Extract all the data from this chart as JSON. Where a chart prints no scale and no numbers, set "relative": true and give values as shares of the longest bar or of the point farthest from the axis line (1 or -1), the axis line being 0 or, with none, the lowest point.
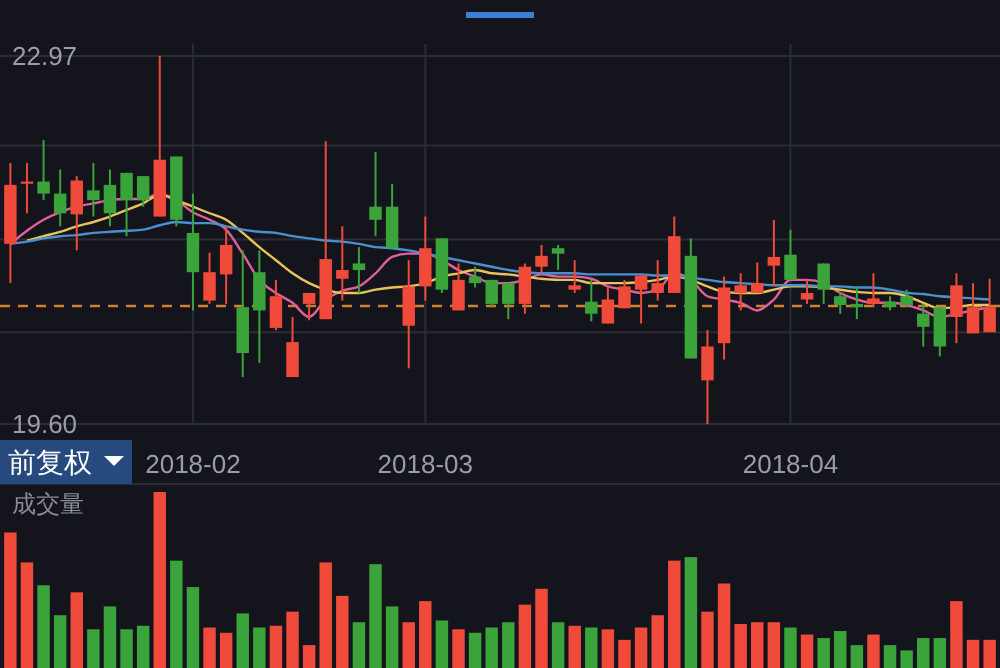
{
  "chart_data": [
    {
      "type": "candlestick",
      "annotations": [
        "前复权"
      ],
      "categories": [
        null,
        null,
        null,
        null,
        null,
        null,
        null,
        null,
        null,
        null,
        null,
        "2018-02",
        null,
        null,
        null,
        null,
        null,
        null,
        null,
        null,
        null,
        null,
        null,
        null,
        null,
        "2018-03",
        null,
        null,
        null,
        null,
        null,
        null,
        null,
        null,
        null,
        null,
        null,
        null,
        null,
        null,
        null,
        null,
        null,
        null,
        null,
        null,
        null,
        "2018-04",
        null,
        null,
        null,
        null,
        null,
        null,
        null,
        null,
        null,
        null,
        null,
        null
      ],
      "ohlc": [
        [
          21.25,
          21.99,
          20.89,
          21.79
        ],
        [
          21.8,
          21.99,
          21.53,
          21.82
        ],
        [
          21.82,
          22.2,
          21.65,
          21.71
        ],
        [
          21.71,
          21.93,
          21.41,
          21.53
        ],
        [
          21.52,
          21.87,
          21.19,
          21.83
        ],
        [
          21.74,
          21.99,
          21.5,
          21.65
        ],
        [
          21.79,
          21.93,
          21.41,
          21.53
        ],
        [
          21.9,
          21.9,
          21.32,
          21.65
        ],
        [
          21.87,
          21.87,
          21.59,
          21.65
        ],
        [
          21.5,
          22.97,
          21.5,
          22.02
        ],
        [
          22.05,
          22.05,
          21.41,
          21.47
        ],
        [
          21.35,
          21.71,
          20.64,
          20.99
        ],
        [
          20.73,
          21.17,
          20.7,
          20.99
        ],
        [
          20.97,
          21.41,
          20.7,
          21.24
        ],
        [
          20.67,
          21.19,
          20.03,
          20.25
        ],
        [
          20.99,
          21.19,
          20.16,
          20.64
        ],
        [
          20.48,
          20.92,
          20.46,
          20.77
        ],
        [
          20.03,
          20.58,
          20.03,
          20.35
        ],
        [
          20.7,
          20.8,
          20.55,
          20.8
        ],
        [
          20.56,
          22.19,
          20.56,
          21.11
        ],
        [
          20.93,
          21.41,
          20.73,
          21.01
        ],
        [
          21.07,
          21.22,
          20.8,
          21.01
        ],
        [
          21.59,
          22.09,
          21.32,
          21.47
        ],
        [
          21.59,
          21.8,
          21.21,
          21.21
        ],
        [
          20.5,
          21.1,
          20.11,
          20.86
        ],
        [
          20.86,
          21.5,
          20.73,
          21.21
        ],
        [
          21.3,
          21.3,
          20.8,
          20.83
        ],
        [
          20.64,
          21.07,
          20.64,
          20.92
        ],
        [
          20.95,
          21.04,
          20.85,
          20.89
        ],
        [
          20.92,
          20.92,
          20.67,
          20.7
        ],
        [
          20.89,
          20.89,
          20.56,
          20.7
        ],
        [
          20.7,
          21.07,
          20.61,
          21.04
        ],
        [
          21.04,
          21.24,
          20.98,
          21.14
        ],
        [
          21.21,
          21.24,
          21.01,
          21.16
        ],
        [
          20.83,
          21.1,
          20.8,
          20.87
        ],
        [
          20.72,
          20.92,
          20.54,
          20.61
        ],
        [
          20.52,
          20.86,
          20.52,
          20.74
        ],
        [
          20.66,
          20.92,
          20.66,
          20.86
        ],
        [
          20.83,
          20.96,
          20.52,
          20.96
        ],
        [
          20.8,
          21.1,
          20.73,
          20.89
        ],
        [
          20.8,
          21.5,
          20.8,
          21.32
        ],
        [
          21.14,
          21.3,
          20.2,
          20.2
        ],
        [
          20.0,
          20.46,
          19.6,
          20.31
        ],
        [
          20.34,
          20.95,
          20.19,
          20.85
        ],
        [
          20.8,
          20.98,
          20.64,
          20.87
        ],
        [
          20.8,
          21.08,
          20.8,
          20.89
        ],
        [
          21.05,
          21.47,
          20.86,
          21.13
        ],
        [
          21.15,
          21.38,
          20.92,
          20.92
        ],
        [
          20.74,
          20.92,
          20.7,
          20.8
        ],
        [
          21.07,
          21.07,
          20.7,
          20.83
        ],
        [
          20.77,
          20.81,
          20.61,
          20.69
        ],
        [
          20.7,
          20.86,
          20.56,
          20.67
        ],
        [
          20.7,
          20.98,
          20.67,
          20.75
        ],
        [
          20.72,
          20.77,
          20.64,
          20.67
        ],
        [
          20.77,
          20.83,
          20.67,
          20.69
        ],
        [
          20.61,
          20.7,
          20.31,
          20.49
        ],
        [
          20.67,
          20.67,
          20.22,
          20.31
        ],
        [
          20.58,
          20.98,
          20.34,
          20.87
        ],
        [
          20.43,
          20.89,
          20.43,
          20.67
        ],
        [
          20.44,
          20.93,
          20.44,
          20.67
        ]
      ],
      "colors": [
        "#f04a3a",
        "#f04a3a",
        "#3aa33a",
        "#3aa33a",
        "#f04a3a",
        "#3aa33a",
        "#3aa33a",
        "#3aa33a",
        "#3aa33a",
        "#f04a3a",
        "#3aa33a",
        "#3aa33a",
        "#f04a3a",
        "#f04a3a",
        "#3aa33a",
        "#3aa33a",
        "#f04a3a",
        "#f04a3a",
        "#f04a3a",
        "#f04a3a",
        "#f04a3a",
        "#3aa33a",
        "#3aa33a",
        "#3aa33a",
        "#f04a3a",
        "#f04a3a",
        "#3aa33a",
        "#f04a3a",
        "#3aa33a",
        "#3aa33a",
        "#3aa33a",
        "#f04a3a",
        "#f04a3a",
        "#3aa33a",
        "#f04a3a",
        "#3aa33a",
        "#f04a3a",
        "#f04a3a",
        "#f04a3a",
        "#f04a3a",
        "#f04a3a",
        "#3aa33a",
        "#f04a3a",
        "#f04a3a",
        "#f04a3a",
        "#f04a3a",
        "#f04a3a",
        "#3aa33a",
        "#f04a3a",
        "#3aa33a",
        "#3aa33a",
        "#3aa33a",
        "#f04a3a",
        "#3aa33a",
        "#3aa33a",
        "#3aa33a",
        "#3aa33a",
        "#f04a3a",
        "#f04a3a",
        "#f04a3a"
      ],
      "series": [
        {
          "type": "line",
          "color": "#e0609a",
          "values": [
            21.25,
            21.37,
            21.47,
            21.54,
            21.59,
            21.62,
            21.65,
            21.66,
            21.66,
            21.71,
            21.65,
            21.54,
            21.47,
            21.38,
            21.16,
            20.92,
            20.8,
            20.71,
            20.58,
            20.74,
            20.82,
            20.86,
            20.98,
            21.13,
            21.16,
            21.16,
            21.1,
            21.01,
            20.95,
            20.89,
            20.89,
            20.92,
            20.97,
            20.95,
            20.95,
            20.93,
            20.86,
            20.83,
            20.8,
            20.83,
            20.98,
            20.92,
            20.77,
            20.74,
            20.71,
            20.64,
            20.74,
            20.92,
            20.92,
            20.89,
            20.8,
            20.74,
            20.71,
            20.71,
            20.69,
            20.64,
            20.58,
            20.61,
            20.64,
            20.67
          ]
        },
        {
          "type": "line",
          "color": "#e8c25a",
          "values": [
            null,
            21.28,
            21.32,
            21.36,
            21.41,
            21.45,
            21.5,
            21.56,
            21.62,
            21.7,
            21.65,
            21.59,
            21.53,
            21.47,
            21.35,
            21.22,
            21.1,
            20.98,
            20.89,
            20.83,
            20.8,
            20.8,
            20.83,
            20.85,
            20.86,
            20.89,
            20.95,
            20.98,
            21.01,
            20.98,
            20.97,
            20.95,
            20.93,
            20.92,
            20.92,
            20.89,
            20.89,
            20.89,
            20.9,
            20.92,
            20.95,
            20.92,
            20.86,
            20.81,
            20.8,
            20.8,
            20.83,
            20.86,
            20.86,
            20.85,
            20.83,
            20.81,
            20.8,
            20.8,
            20.77,
            20.71,
            20.66,
            20.67,
            20.69,
            20.69
          ]
        },
        {
          "type": "line",
          "color": "#4a90d0",
          "values": [
            21.25,
            21.27,
            21.3,
            21.32,
            21.33,
            21.35,
            21.36,
            21.37,
            21.38,
            21.42,
            21.45,
            21.44,
            21.44,
            21.41,
            21.38,
            21.36,
            21.35,
            21.32,
            21.3,
            21.28,
            21.27,
            21.25,
            21.22,
            21.21,
            21.19,
            21.16,
            21.13,
            21.1,
            21.07,
            21.04,
            21.01,
            20.99,
            20.98,
            20.98,
            20.98,
            20.97,
            20.97,
            20.97,
            20.97,
            20.96,
            20.96,
            20.94,
            20.92,
            20.9,
            20.89,
            20.88,
            20.87,
            20.87,
            20.87,
            20.86,
            20.86,
            20.85,
            20.85,
            20.83,
            20.8,
            20.79,
            20.77,
            20.76,
            20.75,
            20.74
          ]
        }
      ],
      "ylim": [
        19.6,
        23.08
      ],
      "yticks": [
        22.97,
        {
          "value": 22.15,
          "label": null
        },
        {
          "value": 21.29,
          "label": null
        },
        {
          "value": 20.44,
          "label": null
        },
        {
          "value": 19.6,
          "label": "19.60"
        }
      ],
      "grid": true,
      "ref_lines": [
        {
          "axis": "y",
          "value": 20.68,
          "color": "#d08030",
          "line_style": "dashed"
        }
      ]
    },
    {
      "type": "bar",
      "title": "成交量",
      "relative": true,
      "categories": [
        null,
        null,
        null,
        null,
        null,
        null,
        null,
        null,
        null,
        null,
        null,
        null,
        null,
        null,
        null,
        null,
        null,
        null,
        null,
        null,
        null,
        null,
        null,
        null,
        null,
        null,
        null,
        null,
        null,
        null,
        null,
        null,
        null,
        null,
        null,
        null,
        null,
        null,
        null,
        null,
        null,
        null,
        null,
        null,
        null,
        null,
        null,
        null,
        null,
        null,
        null,
        null,
        null,
        null,
        null,
        null,
        null,
        null,
        null,
        null
      ],
      "values": [
        0.77,
        0.6,
        0.47,
        0.3,
        0.43,
        0.22,
        0.35,
        0.22,
        0.24,
        1.0,
        0.61,
        0.46,
        0.23,
        0.2,
        0.31,
        0.23,
        0.24,
        0.32,
        0.13,
        0.6,
        0.41,
        0.26,
        0.59,
        0.35,
        0.26,
        0.38,
        0.27,
        0.22,
        0.2,
        0.23,
        0.26,
        0.36,
        0.45,
        0.26,
        0.24,
        0.23,
        0.22,
        0.16,
        0.23,
        0.3,
        0.61,
        0.63,
        0.32,
        0.48,
        0.25,
        0.26,
        0.26,
        0.23,
        0.19,
        0.17,
        0.21,
        0.13,
        0.19,
        0.13,
        0.1,
        0.17,
        0.17,
        0.38,
        0.16,
        0.16
      ],
      "colors": [
        "#f04a3a",
        "#f04a3a",
        "#3aa33a",
        "#3aa33a",
        "#f04a3a",
        "#3aa33a",
        "#3aa33a",
        "#3aa33a",
        "#3aa33a",
        "#f04a3a",
        "#3aa33a",
        "#3aa33a",
        "#f04a3a",
        "#f04a3a",
        "#3aa33a",
        "#3aa33a",
        "#f04a3a",
        "#f04a3a",
        "#f04a3a",
        "#f04a3a",
        "#f04a3a",
        "#3aa33a",
        "#3aa33a",
        "#3aa33a",
        "#f04a3a",
        "#f04a3a",
        "#3aa33a",
        "#f04a3a",
        "#3aa33a",
        "#3aa33a",
        "#3aa33a",
        "#f04a3a",
        "#f04a3a",
        "#3aa33a",
        "#f04a3a",
        "#3aa33a",
        "#f04a3a",
        "#f04a3a",
        "#f04a3a",
        "#f04a3a",
        "#f04a3a",
        "#3aa33a",
        "#f04a3a",
        "#f04a3a",
        "#f04a3a",
        "#f04a3a",
        "#f04a3a",
        "#3aa33a",
        "#f04a3a",
        "#3aa33a",
        "#3aa33a",
        "#3aa33a",
        "#f04a3a",
        "#3aa33a",
        "#3aa33a",
        "#3aa33a",
        "#3aa33a",
        "#f04a3a",
        "#f04a3a",
        "#f04a3a"
      ]
    }
  ]
}
